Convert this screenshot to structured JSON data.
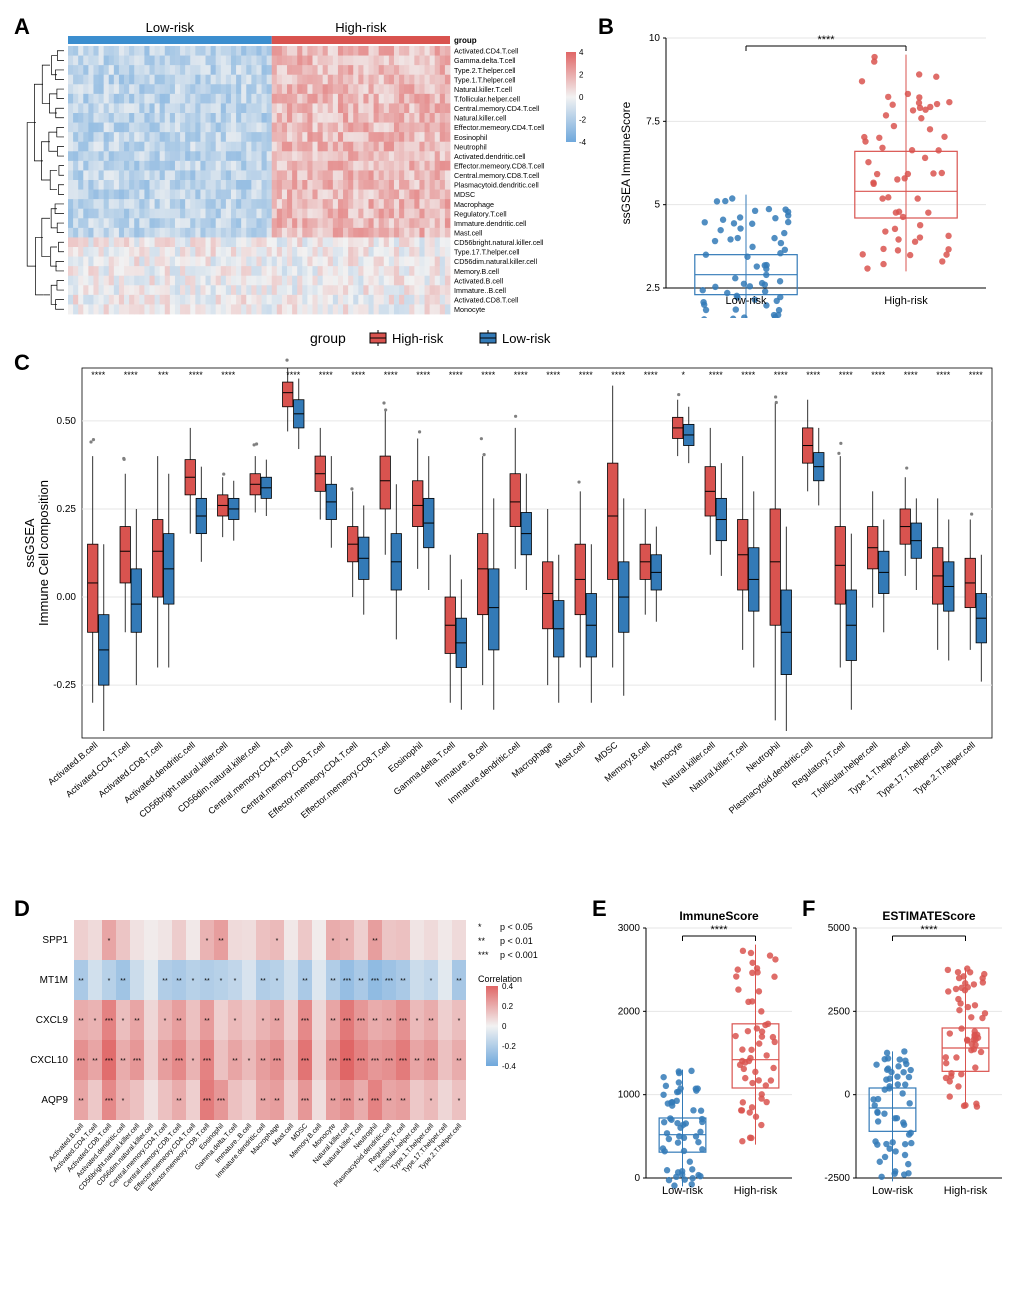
{
  "colors": {
    "high": "#d9534f",
    "low": "#337ab7",
    "heatmap_high": "#e06666",
    "heatmap_low": "#6fa8dc",
    "heatmap_mid": "#f2f2f2",
    "bg": "#ffffff",
    "grid": "#e6e6e6",
    "axis": "#333333",
    "grey_outlier": "#808080",
    "bar_low_header": "#3b8ecf",
    "bar_high_header": "#d9534f"
  },
  "cell_types": [
    "Activated.CD4.T.cell",
    "Gamma.delta.T.cell",
    "Type.2.T.helper.cell",
    "Type.1.T.helper.cell",
    "Natural.killer.T.cell",
    "T.follicular.helper.cell",
    "Central.memory.CD4.T.cell",
    "Natural.killer.cell",
    "Effector.memeory.CD4.T.cell",
    "Eosinophil",
    "Neutrophil",
    "Activated.dendritic.cell",
    "Effector.memeory.CD8.T.cell",
    "Central.memory.CD8.T.cell",
    "Plasmacytoid.dendritic.cell",
    "MDSC",
    "Macrophage",
    "Regulatory.T.cell",
    "Immature.dendritic.cell",
    "Mast.cell",
    "CD56bright.natural.killer.cell",
    "Type.17.T.helper.cell",
    "CD56dim.natural.killer.cell",
    "Memory.B.cell",
    "Activated.B.cell",
    "Immature..B.cell",
    "Activated.CD8.T.cell",
    "Monocyte"
  ],
  "panelA": {
    "label_low": "Low-risk",
    "label_high": "High-risk",
    "group_label": "group",
    "scale_ticks": [
      4,
      2,
      0,
      -2,
      -4
    ],
    "n_cols_low": 40,
    "n_cols_high": 35
  },
  "panelB": {
    "ylabel": "ssGSEA ImmuneScore",
    "xlabels": [
      "Low-risk",
      "High-risk"
    ],
    "sig": "****",
    "yticks": [
      2.5,
      5.0,
      7.5,
      10.0
    ],
    "low": {
      "median": 2.9,
      "q1": 2.3,
      "q3": 3.5,
      "whisker_lo": 1.4,
      "whisker_hi": 5.3
    },
    "high": {
      "median": 5.4,
      "q1": 4.6,
      "q3": 6.6,
      "whisker_lo": 3.0,
      "whisker_hi": 9.5
    },
    "jitter_seed": 11
  },
  "legend_group": {
    "label": "group",
    "items": [
      "High-risk",
      "Low-risk"
    ]
  },
  "panelC": {
    "ylabel_line1": "ssGSEA",
    "ylabel_line2": "Immune Cell composition",
    "yticks": [
      -0.25,
      0.0,
      0.25,
      0.5
    ],
    "ylim": [
      -0.4,
      0.65
    ],
    "categories": [
      "Activated.B.cell",
      "Activated.CD4.T.cell",
      "Activated.CD8.T.cell",
      "Activated.dendritic.cell",
      "CD56bright.natural.killer.cell",
      "CD56dim.natural.killer.cell",
      "Central.memory.CD4.T.cell",
      "Central.memory.CD8.T.cell",
      "Effector.memeory.CD4.T.cell",
      "Effector.memeory.CD8.T.cell",
      "Eosinophil",
      "Gamma.delta.T.cell",
      "Immature..B.cell",
      "Immature.dendritic.cell",
      "Macrophage",
      "Mast.cell",
      "MDSC",
      "Memory.B.cell",
      "Monocyte",
      "Natural.killer.cell",
      "Natural.killer.T.cell",
      "Neutrophil",
      "Plasmacytoid.dendritic.cell",
      "Regulatory.T.cell",
      "T.follicular.helper.cell",
      "Type.1.T.helper.cell",
      "Type.17.T.helper.cell",
      "Type.2.T.helper.cell"
    ],
    "sig": [
      "****",
      "****",
      "***",
      "****",
      "****",
      "",
      "****",
      "****",
      "****",
      "****",
      "****",
      "****",
      "****",
      "****",
      "****",
      "****",
      "****",
      "****",
      "*",
      "****",
      "****",
      "****",
      "****",
      "****",
      "****",
      "****",
      "****",
      "****"
    ],
    "high": [
      {
        "m": 0.04,
        "q1": -0.1,
        "q3": 0.15,
        "lo": -0.3,
        "hi": 0.4
      },
      {
        "m": 0.13,
        "q1": 0.04,
        "q3": 0.2,
        "lo": -0.1,
        "hi": 0.35
      },
      {
        "m": 0.13,
        "q1": 0.0,
        "q3": 0.22,
        "lo": -0.2,
        "hi": 0.4
      },
      {
        "m": 0.34,
        "q1": 0.29,
        "q3": 0.39,
        "lo": 0.18,
        "hi": 0.48
      },
      {
        "m": 0.26,
        "q1": 0.23,
        "q3": 0.29,
        "lo": 0.17,
        "hi": 0.34
      },
      {
        "m": 0.32,
        "q1": 0.29,
        "q3": 0.35,
        "lo": 0.24,
        "hi": 0.4
      },
      {
        "m": 0.58,
        "q1": 0.54,
        "q3": 0.61,
        "lo": 0.47,
        "hi": 0.65
      },
      {
        "m": 0.35,
        "q1": 0.3,
        "q3": 0.4,
        "lo": 0.22,
        "hi": 0.48
      },
      {
        "m": 0.15,
        "q1": 0.1,
        "q3": 0.2,
        "lo": 0.0,
        "hi": 0.3
      },
      {
        "m": 0.33,
        "q1": 0.25,
        "q3": 0.4,
        "lo": 0.12,
        "hi": 0.53
      },
      {
        "m": 0.26,
        "q1": 0.2,
        "q3": 0.33,
        "lo": 0.08,
        "hi": 0.45
      },
      {
        "m": -0.08,
        "q1": -0.16,
        "q3": 0.0,
        "lo": -0.3,
        "hi": 0.12
      },
      {
        "m": 0.08,
        "q1": -0.05,
        "q3": 0.18,
        "lo": -0.25,
        "hi": 0.4
      },
      {
        "m": 0.27,
        "q1": 0.2,
        "q3": 0.35,
        "lo": 0.08,
        "hi": 0.48
      },
      {
        "m": 0.01,
        "q1": -0.09,
        "q3": 0.1,
        "lo": -0.25,
        "hi": 0.25
      },
      {
        "m": 0.05,
        "q1": -0.05,
        "q3": 0.15,
        "lo": -0.2,
        "hi": 0.3
      },
      {
        "m": 0.23,
        "q1": 0.05,
        "q3": 0.38,
        "lo": -0.2,
        "hi": 0.6
      },
      {
        "m": 0.1,
        "q1": 0.05,
        "q3": 0.15,
        "lo": -0.05,
        "hi": 0.25
      },
      {
        "m": 0.48,
        "q1": 0.45,
        "q3": 0.51,
        "lo": 0.4,
        "hi": 0.56
      },
      {
        "m": 0.3,
        "q1": 0.23,
        "q3": 0.37,
        "lo": 0.12,
        "hi": 0.48
      },
      {
        "m": 0.12,
        "q1": 0.02,
        "q3": 0.22,
        "lo": -0.15,
        "hi": 0.4
      },
      {
        "m": 0.1,
        "q1": -0.08,
        "q3": 0.25,
        "lo": -0.35,
        "hi": 0.55
      },
      {
        "m": 0.43,
        "q1": 0.38,
        "q3": 0.48,
        "lo": 0.3,
        "hi": 0.56
      },
      {
        "m": 0.09,
        "q1": -0.02,
        "q3": 0.2,
        "lo": -0.2,
        "hi": 0.4
      },
      {
        "m": 0.14,
        "q1": 0.08,
        "q3": 0.2,
        "lo": -0.03,
        "hi": 0.3
      },
      {
        "m": 0.2,
        "q1": 0.15,
        "q3": 0.25,
        "lo": 0.06,
        "hi": 0.34
      },
      {
        "m": 0.06,
        "q1": -0.02,
        "q3": 0.14,
        "lo": -0.15,
        "hi": 0.28
      },
      {
        "m": 0.04,
        "q1": -0.03,
        "q3": 0.11,
        "lo": -0.15,
        "hi": 0.22
      }
    ],
    "low": [
      {
        "m": -0.15,
        "q1": -0.25,
        "q3": -0.05,
        "lo": -0.38,
        "hi": 0.15
      },
      {
        "m": -0.02,
        "q1": -0.1,
        "q3": 0.08,
        "lo": -0.25,
        "hi": 0.25
      },
      {
        "m": 0.08,
        "q1": -0.02,
        "q3": 0.18,
        "lo": -0.2,
        "hi": 0.35
      },
      {
        "m": 0.23,
        "q1": 0.18,
        "q3": 0.28,
        "lo": 0.1,
        "hi": 0.37
      },
      {
        "m": 0.25,
        "q1": 0.22,
        "q3": 0.28,
        "lo": 0.16,
        "hi": 0.33
      },
      {
        "m": 0.31,
        "q1": 0.28,
        "q3": 0.34,
        "lo": 0.23,
        "hi": 0.39
      },
      {
        "m": 0.52,
        "q1": 0.48,
        "q3": 0.56,
        "lo": 0.42,
        "hi": 0.62
      },
      {
        "m": 0.27,
        "q1": 0.22,
        "q3": 0.32,
        "lo": 0.14,
        "hi": 0.4
      },
      {
        "m": 0.11,
        "q1": 0.05,
        "q3": 0.17,
        "lo": -0.05,
        "hi": 0.26
      },
      {
        "m": 0.1,
        "q1": 0.02,
        "q3": 0.18,
        "lo": -0.12,
        "hi": 0.32
      },
      {
        "m": 0.21,
        "q1": 0.14,
        "q3": 0.28,
        "lo": 0.02,
        "hi": 0.4
      },
      {
        "m": -0.13,
        "q1": -0.2,
        "q3": -0.06,
        "lo": -0.32,
        "hi": 0.05
      },
      {
        "m": -0.03,
        "q1": -0.15,
        "q3": 0.08,
        "lo": -0.32,
        "hi": 0.28
      },
      {
        "m": 0.18,
        "q1": 0.12,
        "q3": 0.24,
        "lo": 0.02,
        "hi": 0.35
      },
      {
        "m": -0.09,
        "q1": -0.17,
        "q3": -0.01,
        "lo": -0.3,
        "hi": 0.12
      },
      {
        "m": -0.08,
        "q1": -0.17,
        "q3": 0.01,
        "lo": -0.3,
        "hi": 0.15
      },
      {
        "m": 0.0,
        "q1": -0.1,
        "q3": 0.1,
        "lo": -0.28,
        "hi": 0.28
      },
      {
        "m": 0.07,
        "q1": 0.02,
        "q3": 0.12,
        "lo": -0.07,
        "hi": 0.2
      },
      {
        "m": 0.46,
        "q1": 0.43,
        "q3": 0.49,
        "lo": 0.38,
        "hi": 0.54
      },
      {
        "m": 0.22,
        "q1": 0.16,
        "q3": 0.28,
        "lo": 0.06,
        "hi": 0.38
      },
      {
        "m": 0.05,
        "q1": -0.04,
        "q3": 0.14,
        "lo": -0.2,
        "hi": 0.3
      },
      {
        "m": -0.1,
        "q1": -0.22,
        "q3": 0.02,
        "lo": -0.38,
        "hi": 0.2
      },
      {
        "m": 0.37,
        "q1": 0.33,
        "q3": 0.41,
        "lo": 0.26,
        "hi": 0.48
      },
      {
        "m": -0.08,
        "q1": -0.18,
        "q3": 0.02,
        "lo": -0.32,
        "hi": 0.18
      },
      {
        "m": 0.07,
        "q1": 0.01,
        "q3": 0.13,
        "lo": -0.1,
        "hi": 0.22
      },
      {
        "m": 0.16,
        "q1": 0.11,
        "q3": 0.21,
        "lo": 0.02,
        "hi": 0.28
      },
      {
        "m": 0.03,
        "q1": -0.04,
        "q3": 0.1,
        "lo": -0.18,
        "hi": 0.22
      },
      {
        "m": -0.06,
        "q1": -0.13,
        "q3": 0.01,
        "lo": -0.24,
        "hi": 0.12
      }
    ]
  },
  "panelD": {
    "genes": [
      "SPP1",
      "MT1M",
      "CXCL9",
      "CXCL10",
      "AQP9"
    ],
    "xcats": [
      "Activated.B.cell",
      "Activated.CD4.T.cell",
      "Activated.CD8.T.cell",
      "Activated.dendritic.cell",
      "CD56bright.natural.killer.cell",
      "CD56dim.natural.killer.cell",
      "Central.memory.CD4.T.cell",
      "Central.memory.CD8.T.cell",
      "Effector.memeory.CD4.T.cell",
      "Effector.memeory.CD8.T.cell",
      "Eosinophil",
      "Gamma.delta.T.cell",
      "Immature..B.cell",
      "Immature.dendritic.cell",
      "Macrophage",
      "Mast.cell",
      "MDSC",
      "Memory.B.cell",
      "Monocyte",
      "Natural.killer.cell",
      "Natural.killer.T.cell",
      "Neutrophil",
      "Plasmacytoid.dendritic.cell",
      "Regulatory.T.cell",
      "T.follicular.helper.cell",
      "Type.1.T.helper.cell",
      "Type.17.T.helper.cell",
      "Type.2.T.helper.cell"
    ],
    "corr": [
      [
        0.1,
        0.07,
        0.22,
        0.13,
        0.05,
        0.02,
        0.04,
        0.11,
        0.03,
        0.18,
        0.24,
        0.07,
        0.06,
        0.14,
        0.16,
        0.03,
        0.12,
        0.02,
        0.2,
        0.18,
        0.1,
        0.24,
        0.13,
        0.14,
        0.04,
        0.07,
        0.03,
        0.07
      ],
      [
        -0.22,
        -0.1,
        -0.18,
        -0.25,
        -0.12,
        -0.05,
        -0.2,
        -0.22,
        -0.18,
        -0.2,
        -0.18,
        -0.15,
        -0.08,
        -0.2,
        -0.18,
        -0.1,
        -0.22,
        -0.06,
        -0.2,
        -0.28,
        -0.22,
        -0.3,
        -0.26,
        -0.22,
        -0.12,
        -0.15,
        -0.05,
        -0.23
      ],
      [
        0.2,
        0.18,
        0.32,
        0.15,
        0.22,
        0.08,
        0.18,
        0.24,
        0.14,
        0.25,
        0.1,
        0.16,
        0.12,
        0.18,
        0.22,
        0.1,
        0.3,
        0.08,
        0.22,
        0.35,
        0.26,
        0.2,
        0.22,
        0.28,
        0.16,
        0.2,
        0.1,
        0.15
      ],
      [
        0.28,
        0.22,
        0.38,
        0.2,
        0.26,
        0.1,
        0.24,
        0.3,
        0.18,
        0.32,
        0.14,
        0.22,
        0.16,
        0.24,
        0.28,
        0.14,
        0.36,
        0.1,
        0.28,
        0.42,
        0.32,
        0.26,
        0.28,
        0.34,
        0.22,
        0.26,
        0.14,
        0.2
      ],
      [
        0.22,
        0.12,
        0.3,
        0.18,
        0.14,
        0.05,
        0.14,
        0.2,
        0.1,
        0.34,
        0.26,
        0.14,
        0.1,
        0.22,
        0.24,
        0.1,
        0.26,
        0.06,
        0.24,
        0.28,
        0.2,
        0.32,
        0.22,
        0.24,
        0.12,
        0.16,
        0.08,
        0.14
      ]
    ],
    "sig": [
      [
        "",
        "",
        "*",
        "",
        "",
        "",
        "",
        "",
        "",
        "*",
        "**",
        "",
        "",
        "",
        "*",
        "",
        "",
        "",
        "*",
        "*",
        "",
        "**",
        "",
        "",
        "",
        "",
        "",
        ""
      ],
      [
        "**",
        "",
        "*",
        "**",
        "",
        "",
        "**",
        "**",
        "*",
        "**",
        "*",
        "*",
        "",
        "**",
        "*",
        "",
        "**",
        "",
        "**",
        "***",
        "**",
        "***",
        "***",
        "**",
        "",
        "*",
        "",
        "**"
      ],
      [
        "**",
        "*",
        "***",
        "*",
        "**",
        "",
        "*",
        "**",
        "",
        "**",
        "",
        "*",
        "",
        "*",
        "**",
        "",
        "***",
        "",
        "**",
        "***",
        "***",
        "**",
        "**",
        "***",
        "*",
        "**",
        "",
        "*"
      ],
      [
        "***",
        "**",
        "***",
        "**",
        "***",
        "",
        "**",
        "***",
        "*",
        "***",
        "",
        "**",
        "*",
        "**",
        "***",
        "",
        "***",
        "",
        "***",
        "***",
        "***",
        "***",
        "***",
        "***",
        "**",
        "***",
        "",
        "**"
      ],
      [
        "**",
        "",
        "***",
        "*",
        "",
        "",
        "",
        "**",
        "",
        "***",
        "***",
        "",
        "",
        "**",
        "**",
        "",
        "***",
        "",
        "**",
        "***",
        "**",
        "***",
        "**",
        "**",
        "",
        "*",
        "",
        "*"
      ]
    ],
    "legend_sig": [
      [
        "*",
        "p < 0.05"
      ],
      [
        "**",
        "p < 0.01"
      ],
      [
        "***",
        "p < 0.001"
      ]
    ],
    "legend_corr_label": "Correlation",
    "corr_ticks": [
      0.4,
      0.2,
      0,
      -0.2,
      -0.4
    ]
  },
  "panelE": {
    "title": "ImmuneScore",
    "sig": "****",
    "yticks": [
      0,
      1000,
      2000,
      3000
    ],
    "xlabels": [
      "Low-risk",
      "High-risk"
    ],
    "low": {
      "median": 520,
      "q1": 310,
      "q3": 720,
      "whisker_lo": -100,
      "whisker_hi": 1300
    },
    "high": {
      "median": 1420,
      "q1": 1080,
      "q3": 1850,
      "whisker_lo": 400,
      "whisker_hi": 2800
    }
  },
  "panelF": {
    "title": "ESTIMATEScore",
    "sig": "****",
    "yticks": [
      -2500,
      0,
      2500,
      5000
    ],
    "xlabels": [
      "Low-risk",
      "High-risk"
    ],
    "low": {
      "median": -400,
      "q1": -1100,
      "q3": 200,
      "whisker_lo": -2600,
      "whisker_hi": 1300
    },
    "high": {
      "median": 1400,
      "q1": 700,
      "q3": 2000,
      "whisker_lo": -400,
      "whisker_hi": 3800
    }
  }
}
